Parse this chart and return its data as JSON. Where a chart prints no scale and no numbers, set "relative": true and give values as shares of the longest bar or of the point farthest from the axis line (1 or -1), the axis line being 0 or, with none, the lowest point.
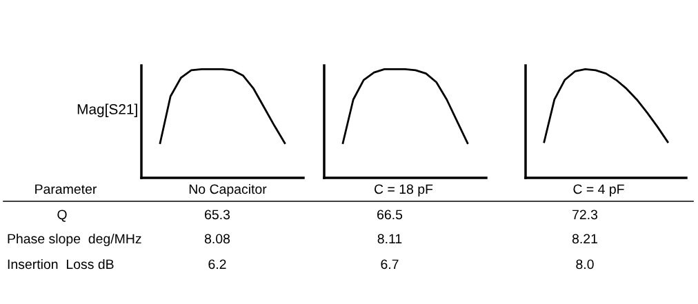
{
  "chart_data": [
    {
      "type": "line",
      "ylabel": "Mag[S21]",
      "relative": true,
      "categories": [
        null,
        null,
        null,
        null,
        null,
        null,
        null,
        null,
        null,
        null,
        null,
        null,
        null
      ],
      "series": [
        {
          "color": "#000000",
          "values": [
            0.32,
            0.75,
            0.92,
            0.99,
            1.0,
            1.0,
            1.0,
            0.99,
            0.94,
            0.82,
            0.65,
            0.48,
            0.32
          ]
        }
      ]
    },
    {
      "type": "line",
      "relative": true,
      "categories": [
        null,
        null,
        null,
        null,
        null,
        null,
        null,
        null,
        null,
        null,
        null,
        null,
        null
      ],
      "series": [
        {
          "color": "#000000",
          "values": [
            0.32,
            0.72,
            0.9,
            0.97,
            1.0,
            1.0,
            1.0,
            0.99,
            0.96,
            0.88,
            0.72,
            0.52,
            0.32
          ]
        }
      ]
    },
    {
      "type": "line",
      "relative": true,
      "categories": [
        null,
        null,
        null,
        null,
        null,
        null,
        null,
        null,
        null,
        null,
        null,
        null,
        null
      ],
      "series": [
        {
          "color": "#000000",
          "values": [
            0.33,
            0.72,
            0.9,
            0.98,
            1.0,
            0.99,
            0.96,
            0.9,
            0.82,
            0.72,
            0.6,
            0.47,
            0.33
          ]
        }
      ]
    },
    {
      "type": "other",
      "categories": [
        "Parameter",
        "No Capacitor",
        "C = 18 pF",
        "C = 4 pF"
      ],
      "annotations": [
        "Q",
        "65.3",
        "66.5",
        "72.3",
        "Phase slope  deg/MHz",
        "8.08",
        "8.11",
        "8.21",
        "Insertion  Loss dB",
        "6.2",
        "6.7",
        "8.0"
      ]
    }
  ]
}
